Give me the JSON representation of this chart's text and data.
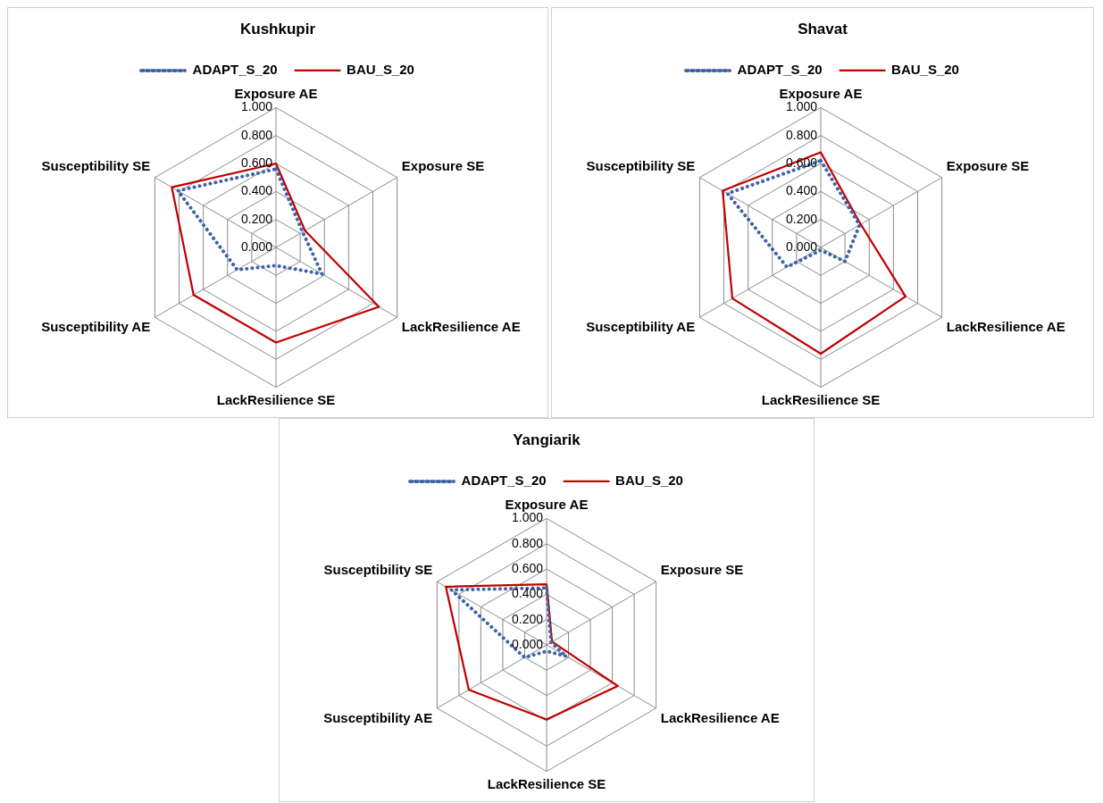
{
  "chart_data": [
    {
      "type": "radar",
      "title": "Kushkupir",
      "categories": [
        "Exposure AE",
        "Exposure SE",
        "LackResilience AE",
        "LackResilience SE",
        "Susceptibility AE",
        "Susceptibility SE"
      ],
      "series": [
        {
          "name": "ADAPT_S_20",
          "color": "#3e63a8",
          "line_style": "dotted",
          "values": [
            0.56,
            0.22,
            0.38,
            0.13,
            0.32,
            0.81
          ]
        },
        {
          "name": "BAU_S_20",
          "color": "#c00000",
          "line_style": "solid",
          "values": [
            0.6,
            0.24,
            0.85,
            0.68,
            0.68,
            0.86
          ]
        }
      ],
      "ylim": [
        0,
        1
      ],
      "yticks": [
        {
          "value": 0,
          "label": "0.000"
        },
        {
          "value": 0.2,
          "label": "0.200"
        },
        {
          "value": 0.4,
          "label": "0.400"
        },
        {
          "value": 0.6,
          "label": "0.600"
        },
        {
          "value": 0.8,
          "label": "0.800"
        },
        {
          "value": 1,
          "label": "1.000"
        }
      ],
      "grid": true,
      "legend": "top",
      "marker": "none"
    },
    {
      "type": "radar",
      "title": "Shavat",
      "categories": [
        "Exposure AE",
        "Exposure SE",
        "LackResilience AE",
        "LackResilience SE",
        "Susceptibility AE",
        "Susceptibility SE"
      ],
      "series": [
        {
          "name": "ADAPT_S_20",
          "color": "#3e63a8",
          "line_style": "dotted",
          "values": [
            0.62,
            0.32,
            0.2,
            0.02,
            0.28,
            0.77
          ]
        },
        {
          "name": "BAU_S_20",
          "color": "#c00000",
          "line_style": "solid",
          "values": [
            0.68,
            0.33,
            0.7,
            0.76,
            0.73,
            0.81
          ]
        }
      ],
      "ylim": [
        0,
        1
      ],
      "yticks": [
        {
          "value": 0,
          "label": "0.000"
        },
        {
          "value": 0.2,
          "label": "0.200"
        },
        {
          "value": 0.4,
          "label": "0.400"
        },
        {
          "value": 0.6,
          "label": "0.600"
        },
        {
          "value": 0.8,
          "label": "0.800"
        },
        {
          "value": 1,
          "label": "1.000"
        }
      ],
      "grid": true,
      "legend": "top",
      "marker": "none"
    },
    {
      "type": "radar",
      "title": "Yangiarik",
      "categories": [
        "Exposure AE",
        "Exposure SE",
        "LackResilience AE",
        "LackResilience SE",
        "Susceptibility AE",
        "Susceptibility SE"
      ],
      "series": [
        {
          "name": "ADAPT_S_20",
          "color": "#3e63a8",
          "line_style": "dotted",
          "values": [
            0.45,
            0.04,
            0.18,
            0.05,
            0.2,
            0.87
          ]
        },
        {
          "name": "BAU_S_20",
          "color": "#c00000",
          "line_style": "solid",
          "values": [
            0.48,
            0.05,
            0.65,
            0.59,
            0.71,
            0.92
          ]
        }
      ],
      "ylim": [
        0,
        1
      ],
      "yticks": [
        {
          "value": 0,
          "label": "0.000"
        },
        {
          "value": 0.2,
          "label": "0.200"
        },
        {
          "value": 0.4,
          "label": "0.400"
        },
        {
          "value": 0.6,
          "label": "0.600"
        },
        {
          "value": 0.8,
          "label": "0.800"
        },
        {
          "value": 1,
          "label": "1.000"
        }
      ],
      "grid": true,
      "legend": "top",
      "marker": "none"
    }
  ]
}
